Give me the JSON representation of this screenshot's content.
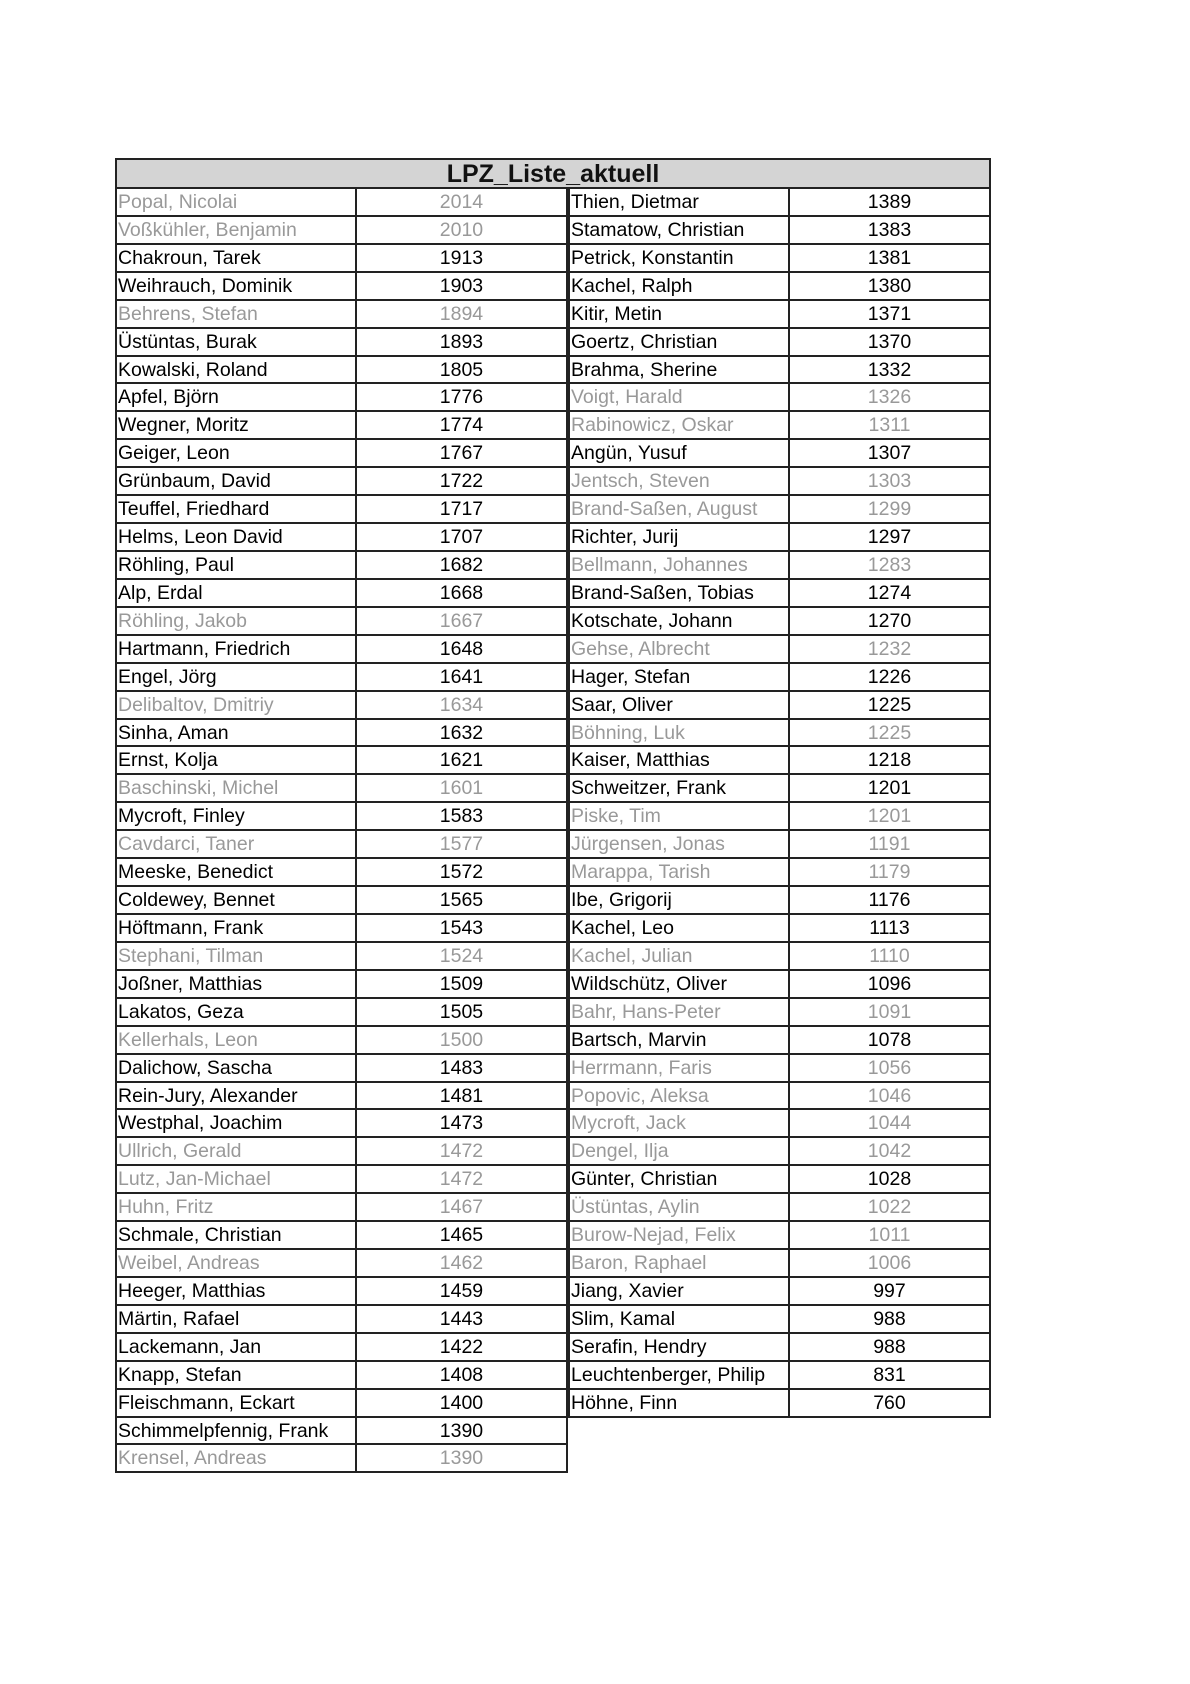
{
  "title": "LPZ_Liste_aktuell",
  "colors": {
    "header_bg": "#d4d4d4",
    "active_text": "#000000",
    "inactive_text": "#999999"
  },
  "left": [
    {
      "name": "Popal, Nicolai",
      "score": "2014",
      "inactive": true
    },
    {
      "name": "Voßkühler, Benjamin",
      "score": "2010",
      "inactive": true
    },
    {
      "name": "Chakroun, Tarek",
      "score": "1913"
    },
    {
      "name": "Weihrauch, Dominik",
      "score": "1903"
    },
    {
      "name": "Behrens, Stefan",
      "score": "1894",
      "inactive": true
    },
    {
      "name": "Üstüntas, Burak",
      "score": "1893"
    },
    {
      "name": "Kowalski, Roland",
      "score": "1805"
    },
    {
      "name": "Apfel, Björn",
      "score": "1776"
    },
    {
      "name": "Wegner, Moritz",
      "score": "1774"
    },
    {
      "name": "Geiger, Leon",
      "score": "1767"
    },
    {
      "name": "Grünbaum, David",
      "score": "1722"
    },
    {
      "name": "Teuffel, Friedhard",
      "score": "1717"
    },
    {
      "name": "Helms, Leon David",
      "score": "1707"
    },
    {
      "name": "Röhling, Paul",
      "score": "1682"
    },
    {
      "name": "Alp, Erdal",
      "score": "1668"
    },
    {
      "name": "Röhling, Jakob",
      "score": "1667",
      "inactive": true
    },
    {
      "name": "Hartmann, Friedrich",
      "score": "1648"
    },
    {
      "name": "Engel, Jörg",
      "score": "1641"
    },
    {
      "name": "Delibaltov, Dmitriy",
      "score": "1634",
      "inactive": true
    },
    {
      "name": "Sinha, Aman",
      "score": "1632"
    },
    {
      "name": "Ernst, Kolja",
      "score": "1621"
    },
    {
      "name": "Baschinski, Michel",
      "score": "1601",
      "inactive": true
    },
    {
      "name": "Mycroft, Finley",
      "score": "1583"
    },
    {
      "name": "Cavdarci, Taner",
      "score": "1577",
      "inactive": true
    },
    {
      "name": "Meeske, Benedict",
      "score": "1572"
    },
    {
      "name": "Coldewey, Bennet",
      "score": "1565"
    },
    {
      "name": "Höftmann, Frank",
      "score": "1543"
    },
    {
      "name": "Stephani, Tilman",
      "score": "1524",
      "inactive": true
    },
    {
      "name": "Joßner, Matthias",
      "score": "1509"
    },
    {
      "name": "Lakatos, Geza",
      "score": "1505"
    },
    {
      "name": "Kellerhals, Leon",
      "score": "1500",
      "inactive": true
    },
    {
      "name": "Dalichow, Sascha",
      "score": "1483"
    },
    {
      "name": "Rein-Jury, Alexander",
      "score": "1481"
    },
    {
      "name": "Westphal, Joachim",
      "score": "1473"
    },
    {
      "name": "Ullrich, Gerald",
      "score": "1472",
      "inactive": true
    },
    {
      "name": "Lutz, Jan-Michael",
      "score": "1472",
      "inactive": true
    },
    {
      "name": "Huhn, Fritz",
      "score": "1467",
      "inactive": true
    },
    {
      "name": "Schmale, Christian",
      "score": "1465"
    },
    {
      "name": "Weibel, Andreas",
      "score": "1462",
      "inactive": true
    },
    {
      "name": "Heeger, Matthias",
      "score": "1459"
    },
    {
      "name": "Märtin, Rafael",
      "score": "1443"
    },
    {
      "name": "Lackemann, Jan",
      "score": "1422"
    },
    {
      "name": "Knapp, Stefan",
      "score": "1408"
    },
    {
      "name": "Fleischmann, Eckart",
      "score": "1400"
    },
    {
      "name": "Schimmelpfennig, Frank",
      "score": "1390"
    },
    {
      "name": "Krensel, Andreas",
      "score": "1390",
      "inactive": true
    }
  ],
  "right": [
    {
      "name": "Thien, Dietmar",
      "score": "1389"
    },
    {
      "name": "Stamatow, Christian",
      "score": "1383"
    },
    {
      "name": "Petrick, Konstantin",
      "score": "1381"
    },
    {
      "name": "Kachel, Ralph",
      "score": "1380"
    },
    {
      "name": "Kitir, Metin",
      "score": "1371"
    },
    {
      "name": "Goertz, Christian",
      "score": "1370"
    },
    {
      "name": "Brahma, Sherine",
      "score": "1332"
    },
    {
      "name": "Voigt, Harald",
      "score": "1326",
      "inactive": true
    },
    {
      "name": "Rabinowicz, Oskar",
      "score": "1311",
      "inactive": true
    },
    {
      "name": "Angün, Yusuf",
      "score": "1307"
    },
    {
      "name": "Jentsch, Steven",
      "score": "1303",
      "inactive": true
    },
    {
      "name": "Brand-Saßen, August",
      "score": "1299",
      "inactive": true
    },
    {
      "name": "Richter, Jurij",
      "score": "1297"
    },
    {
      "name": "Bellmann, Johannes",
      "score": "1283",
      "inactive": true
    },
    {
      "name": "Brand-Saßen, Tobias",
      "score": "1274"
    },
    {
      "name": "Kotschate, Johann",
      "score": "1270"
    },
    {
      "name": "Gehse, Albrecht",
      "score": "1232",
      "inactive": true
    },
    {
      "name": "Hager, Stefan",
      "score": "1226"
    },
    {
      "name": "Saar, Oliver",
      "score": "1225"
    },
    {
      "name": "Böhning, Luk",
      "score": "1225",
      "inactive": true
    },
    {
      "name": "Kaiser, Matthias",
      "score": "1218"
    },
    {
      "name": "Schweitzer, Frank",
      "score": "1201"
    },
    {
      "name": "Piske, Tim",
      "score": "1201",
      "inactive": true
    },
    {
      "name": "Jürgensen, Jonas",
      "score": "1191",
      "inactive": true
    },
    {
      "name": "Marappa, Tarish",
      "score": "1179",
      "inactive": true
    },
    {
      "name": "Ibe, Grigorij",
      "score": "1176"
    },
    {
      "name": "Kachel, Leo",
      "score": "1113"
    },
    {
      "name": "Kachel, Julian",
      "score": "1110",
      "inactive": true
    },
    {
      "name": "Wildschütz, Oliver",
      "score": "1096"
    },
    {
      "name": "Bahr, Hans-Peter",
      "score": "1091",
      "inactive": true
    },
    {
      "name": "Bartsch, Marvin",
      "score": "1078"
    },
    {
      "name": "Herrmann, Faris",
      "score": "1056",
      "inactive": true
    },
    {
      "name": "Popovic, Aleksa",
      "score": "1046",
      "inactive": true
    },
    {
      "name": "Mycroft, Jack",
      "score": "1044",
      "inactive": true
    },
    {
      "name": "Dengel, Ilja",
      "score": "1042",
      "inactive": true
    },
    {
      "name": "Günter, Christian",
      "score": "1028"
    },
    {
      "name": "Üstüntas, Aylin",
      "score": "1022",
      "inactive": true
    },
    {
      "name": "Burow-Nejad, Felix",
      "score": "1011",
      "inactive": true
    },
    {
      "name": "Baron, Raphael",
      "score": "1006",
      "inactive": true
    },
    {
      "name": "Jiang, Xavier",
      "score": "997"
    },
    {
      "name": "Slim, Kamal",
      "score": "988"
    },
    {
      "name": "Serafin, Hendry",
      "score": "988"
    },
    {
      "name": "Leuchtenberger, Philip",
      "score": "831"
    },
    {
      "name": "Höhne, Finn",
      "score": "760"
    }
  ]
}
